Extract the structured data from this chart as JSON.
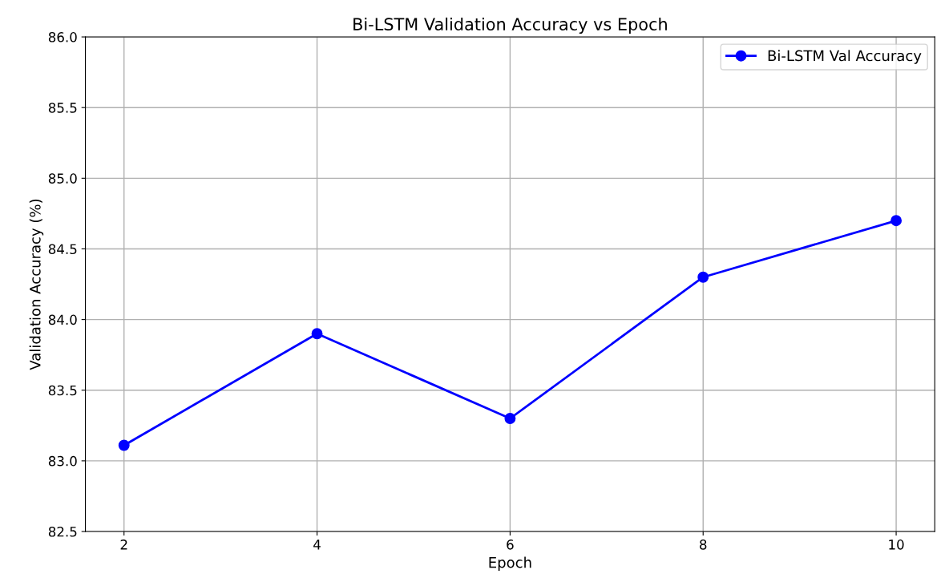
{
  "chart_data": {
    "type": "line",
    "title": "Bi-LSTM Validation Accuracy vs Epoch",
    "xlabel": "Epoch",
    "ylabel": "Validation Accuracy (%)",
    "x": [
      2,
      4,
      6,
      8,
      10
    ],
    "series": [
      {
        "name": "Bi-LSTM Val Accuracy",
        "color": "#0000ff",
        "values": [
          83.11,
          83.9,
          83.3,
          84.3,
          84.7
        ]
      }
    ],
    "xlim": [
      1.6,
      10.4
    ],
    "xticks": [
      2,
      4,
      6,
      8,
      10
    ],
    "ylim": [
      82.5,
      86.0
    ],
    "yticks": [
      {
        "value": 82.5,
        "label": "82.5"
      },
      {
        "value": 83.0,
        "label": "83.0"
      },
      {
        "value": 83.5,
        "label": "83.5"
      },
      {
        "value": 84.0,
        "label": "84.0"
      },
      {
        "value": 84.5,
        "label": "84.5"
      },
      {
        "value": 85.0,
        "label": "85.0"
      },
      {
        "value": 85.5,
        "label": "85.5"
      },
      {
        "value": 86.0,
        "label": "86.0"
      }
    ],
    "grid": true,
    "legend": "top right",
    "marker": "circle",
    "line_style": "solid"
  }
}
